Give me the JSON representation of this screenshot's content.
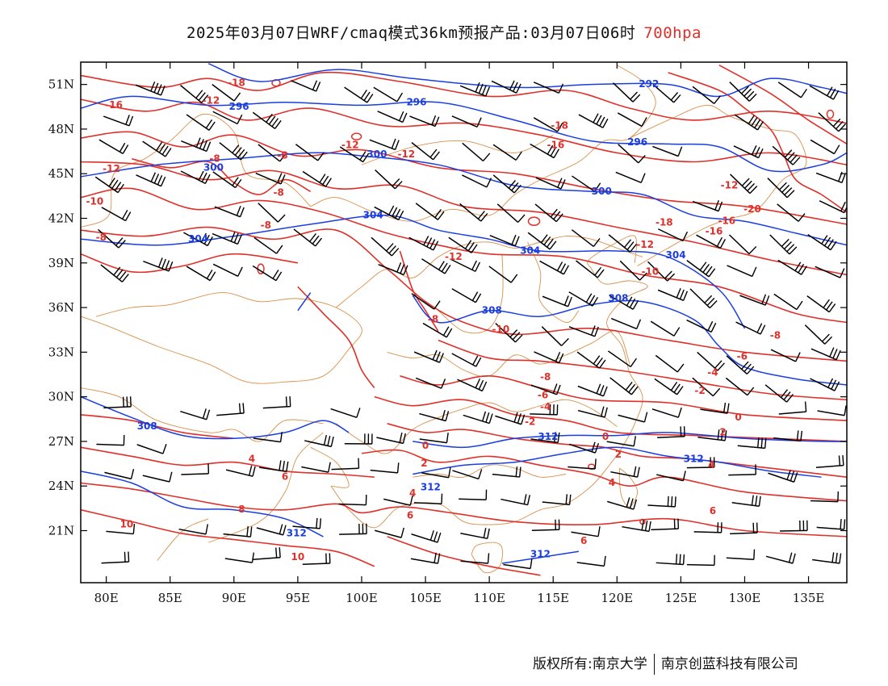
{
  "title": {
    "main": "2025年03月07日WRF/cmaq模式36km预报产品:03月07日06时",
    "level": "700hpa"
  },
  "colors": {
    "temperature": "#e0302a",
    "geopotential": "#1a3ee0",
    "boundary": "#d9904a",
    "wind": "#000000",
    "frame": "#000000"
  },
  "axes": {
    "lon_ticks": [
      "80E",
      "85E",
      "90E",
      "95E",
      "100E",
      "105E",
      "110E",
      "115E",
      "120E",
      "125E",
      "130E",
      "135E"
    ],
    "lat_ticks": [
      "51N",
      "48N",
      "45N",
      "42N",
      "39N",
      "36N",
      "33N",
      "30N",
      "27N",
      "24N",
      "21N"
    ]
  },
  "map_data": {
    "lon_range": [
      78,
      138
    ],
    "lat_range": [
      17.5,
      52.5
    ],
    "temperature_labels": [
      {
        "text": "-18",
        "lon": 90.2,
        "lat": 51.1
      },
      {
        "text": "-16",
        "lon": 80.6,
        "lat": 49.6
      },
      {
        "text": "-12",
        "lon": 88.2,
        "lat": 49.9
      },
      {
        "text": "-12",
        "lon": 80.4,
        "lat": 45.3
      },
      {
        "text": "-8",
        "lon": 88.5,
        "lat": 46.0
      },
      {
        "text": "-8",
        "lon": 93.8,
        "lat": 46.2
      },
      {
        "text": "-12",
        "lon": 99.1,
        "lat": 46.9
      },
      {
        "text": "-12",
        "lon": 103.5,
        "lat": 46.3
      },
      {
        "text": "-18",
        "lon": 115.5,
        "lat": 48.2
      },
      {
        "text": "-16",
        "lon": 115.2,
        "lat": 46.9
      },
      {
        "text": "-10",
        "lon": 79.1,
        "lat": 43.1
      },
      {
        "text": "-8",
        "lon": 79.6,
        "lat": 40.7
      },
      {
        "text": "-8",
        "lon": 92.5,
        "lat": 41.5
      },
      {
        "text": "-8",
        "lon": 93.5,
        "lat": 43.7
      },
      {
        "text": "-12",
        "lon": 107.2,
        "lat": 39.4
      },
      {
        "text": "-12",
        "lon": 122.2,
        "lat": 40.2
      },
      {
        "text": "-10",
        "lon": 122.6,
        "lat": 38.4
      },
      {
        "text": "-12",
        "lon": 128.8,
        "lat": 44.2
      },
      {
        "text": "-16",
        "lon": 128.6,
        "lat": 41.8
      },
      {
        "text": "-20",
        "lon": 130.6,
        "lat": 42.6
      },
      {
        "text": "-16",
        "lon": 127.6,
        "lat": 41.1
      },
      {
        "text": "-18",
        "lon": 123.7,
        "lat": 41.7
      },
      {
        "text": "-8",
        "lon": 105.6,
        "lat": 35.2
      },
      {
        "text": "-10",
        "lon": 110.9,
        "lat": 34.5
      },
      {
        "text": "-8",
        "lon": 132.4,
        "lat": 34.1
      },
      {
        "text": "-6",
        "lon": 129.8,
        "lat": 32.7
      },
      {
        "text": "-8",
        "lon": 114.4,
        "lat": 31.3
      },
      {
        "text": "-6",
        "lon": 114.2,
        "lat": 30.1
      },
      {
        "text": "-4",
        "lon": 114.4,
        "lat": 29.3
      },
      {
        "text": "-2",
        "lon": 113.2,
        "lat": 28.3
      },
      {
        "text": "-4",
        "lon": 127.5,
        "lat": 31.6
      },
      {
        "text": "-2",
        "lon": 126.5,
        "lat": 30.4
      },
      {
        "text": "0",
        "lon": 129.5,
        "lat": 28.6
      },
      {
        "text": "2",
        "lon": 128.3,
        "lat": 27.6
      },
      {
        "text": "0",
        "lon": 119.1,
        "lat": 27.3
      },
      {
        "text": "2",
        "lon": 120.1,
        "lat": 26.1
      },
      {
        "text": "4",
        "lon": 127.4,
        "lat": 25.4
      },
      {
        "text": "4",
        "lon": 119.6,
        "lat": 24.2
      },
      {
        "text": "6",
        "lon": 127.5,
        "lat": 22.3
      },
      {
        "text": "6",
        "lon": 117.4,
        "lat": 20.3
      },
      {
        "text": "0",
        "lon": 105.0,
        "lat": 26.7
      },
      {
        "text": "2",
        "lon": 104.9,
        "lat": 25.5
      },
      {
        "text": "4",
        "lon": 104.0,
        "lat": 23.5
      },
      {
        "text": "6",
        "lon": 103.8,
        "lat": 22.0
      },
      {
        "text": "4",
        "lon": 91.4,
        "lat": 25.8
      },
      {
        "text": "6",
        "lon": 94.0,
        "lat": 24.6
      },
      {
        "text": "8",
        "lon": 90.6,
        "lat": 22.4
      },
      {
        "text": "10",
        "lon": 81.6,
        "lat": 21.4
      },
      {
        "text": "10",
        "lon": 95.0,
        "lat": 19.2
      }
    ],
    "geopotential_labels": [
      {
        "text": "292",
        "lon": 122.5,
        "lat": 51.0
      },
      {
        "text": "296",
        "lon": 90.4,
        "lat": 49.5
      },
      {
        "text": "296",
        "lon": 104.3,
        "lat": 49.8
      },
      {
        "text": "296",
        "lon": 121.6,
        "lat": 47.1
      },
      {
        "text": "300",
        "lon": 88.4,
        "lat": 45.4
      },
      {
        "text": "300",
        "lon": 101.2,
        "lat": 46.3
      },
      {
        "text": "300",
        "lon": 118.8,
        "lat": 43.8
      },
      {
        "text": "304",
        "lon": 100.9,
        "lat": 42.2
      },
      {
        "text": "304",
        "lon": 87.2,
        "lat": 40.6
      },
      {
        "text": "304",
        "lon": 113.2,
        "lat": 39.8
      },
      {
        "text": "304",
        "lon": 124.6,
        "lat": 39.5
      },
      {
        "text": "308",
        "lon": 110.2,
        "lat": 35.8
      },
      {
        "text": "308",
        "lon": 120.1,
        "lat": 36.6
      },
      {
        "text": "308",
        "lon": 83.2,
        "lat": 28.0
      },
      {
        "text": "312",
        "lon": 114.6,
        "lat": 27.3
      },
      {
        "text": "312",
        "lon": 126.0,
        "lat": 25.8
      },
      {
        "text": "312",
        "lon": 105.4,
        "lat": 23.9
      },
      {
        "text": "312",
        "lon": 94.9,
        "lat": 20.8
      },
      {
        "text": "312",
        "lon": 114.0,
        "lat": 19.4
      }
    ]
  },
  "credit": {
    "left": "版权所有:南京大学",
    "right": "南京创蓝科技有限公司"
  }
}
